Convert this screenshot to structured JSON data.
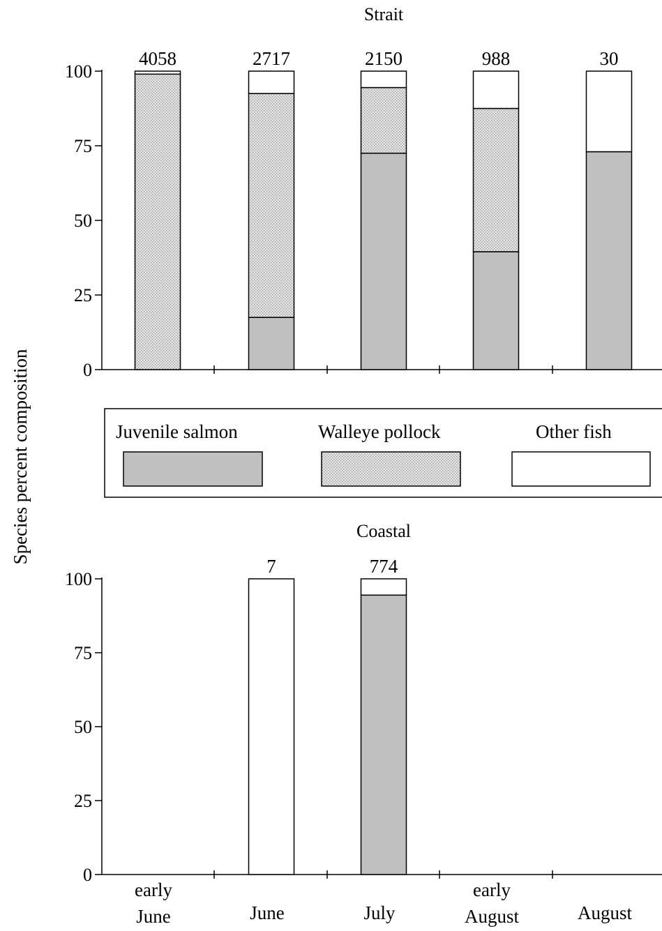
{
  "chart_data": [
    {
      "type": "bar",
      "stacked": true,
      "title": "Strait",
      "ylabel": "Species percent composition",
      "ylim": [
        0,
        100
      ],
      "yticks": [
        0,
        25,
        50,
        75,
        100
      ],
      "grid": false,
      "categories": [
        "early June",
        "June",
        "July",
        "early August",
        "August"
      ],
      "sample_sizes": [
        "4058",
        "2717",
        "2150",
        "988",
        "30"
      ],
      "series": [
        {
          "name": "Juvenile salmon",
          "values": [
            0,
            17.5,
            72.5,
            39.5,
            73
          ]
        },
        {
          "name": "Walleye pollock",
          "values": [
            99,
            75,
            22,
            48,
            0
          ]
        },
        {
          "name": "Other fish",
          "values": [
            1,
            7.5,
            5.5,
            12.5,
            27
          ]
        }
      ]
    },
    {
      "type": "bar",
      "stacked": true,
      "title": "Coastal",
      "ylabel": "Species percent composition",
      "ylim": [
        0,
        100
      ],
      "yticks": [
        0,
        25,
        50,
        75,
        100
      ],
      "grid": false,
      "categories": [
        "early June",
        "June",
        "July",
        "early August",
        "August"
      ],
      "sample_sizes": [
        "",
        "7",
        "774",
        "",
        ""
      ],
      "series": [
        {
          "name": "Juvenile salmon",
          "values": [
            0,
            0,
            94.5,
            0,
            0
          ]
        },
        {
          "name": "Walleye pollock",
          "values": [
            0,
            0,
            0,
            0,
            0
          ]
        },
        {
          "name": "Other fish",
          "values": [
            0,
            100,
            5.5,
            0,
            0
          ]
        }
      ]
    }
  ],
  "legend": {
    "placement": "between panels",
    "items": [
      {
        "label": "Juvenile salmon",
        "style": "gray"
      },
      {
        "label": "Walleye pollock",
        "style": "dotted"
      },
      {
        "label": "Other fish",
        "style": "white"
      }
    ]
  },
  "x_labels": [
    {
      "line1": "early",
      "line2": "June"
    },
    {
      "line1": "",
      "line2": "June"
    },
    {
      "line1": "",
      "line2": "July"
    },
    {
      "line1": "early",
      "line2": "August"
    },
    {
      "line1": "",
      "line2": "August"
    }
  ],
  "colors": {
    "salmon": "#c0c0c0",
    "pollock_bg": "#e4e4e4",
    "pollock_dot": "#8a8a8a",
    "other": "#ffffff",
    "axis": "#000000"
  }
}
